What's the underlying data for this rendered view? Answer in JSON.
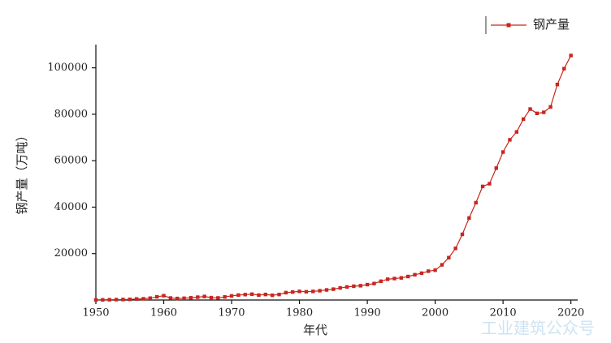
{
  "chart_data": {
    "type": "line",
    "x_label": "年代",
    "y_label": "钢产量（万吨）",
    "x": [
      1950,
      1951,
      1952,
      1953,
      1954,
      1955,
      1956,
      1957,
      1958,
      1959,
      1960,
      1961,
      1962,
      1963,
      1964,
      1965,
      1966,
      1967,
      1968,
      1969,
      1970,
      1971,
      1972,
      1973,
      1974,
      1975,
      1976,
      1977,
      1978,
      1979,
      1980,
      1981,
      1982,
      1983,
      1984,
      1985,
      1986,
      1987,
      1988,
      1989,
      1990,
      1991,
      1992,
      1993,
      1994,
      1995,
      1996,
      1997,
      1998,
      1999,
      2000,
      2001,
      2002,
      2003,
      2004,
      2005,
      2006,
      2007,
      2008,
      2009,
      2010,
      2011,
      2012,
      2013,
      2014,
      2015,
      2016,
      2017,
      2018,
      2019,
      2020
    ],
    "series": [
      {
        "name": "钢产量",
        "color": "#c8261e",
        "values": [
          61,
          90,
          135,
          177,
          223,
          285,
          447,
          535,
          800,
          1387,
          1866,
          870,
          667,
          762,
          964,
          1223,
          1532,
          1029,
          904,
          1333,
          1779,
          2132,
          2338,
          2522,
          2112,
          2390,
          2046,
          2374,
          3178,
          3448,
          3712,
          3560,
          3716,
          4002,
          4347,
          4679,
          5221,
          5628,
          5943,
          6159,
          6635,
          7100,
          8094,
          8956,
          9261,
          9536,
          10124,
          10894,
          11559,
          12426,
          12850,
          15163,
          18237,
          22234,
          28291,
          35324,
          41915,
          48929,
          50092,
          56803,
          63723,
          69000,
          72388,
          77904,
          82231,
          80383,
          80837,
          83173,
          92826,
          99634,
          105300
        ]
      }
    ],
    "xlim": [
      1950,
      2021
    ],
    "ylim": [
      0,
      110000
    ],
    "xticks": [
      1950,
      1960,
      1970,
      1980,
      1990,
      2000,
      2010,
      2020
    ],
    "yticks": [
      20000,
      40000,
      60000,
      80000,
      100000
    ],
    "legend": "top-right",
    "grid": false
  },
  "watermark": "工业建筑公众号"
}
